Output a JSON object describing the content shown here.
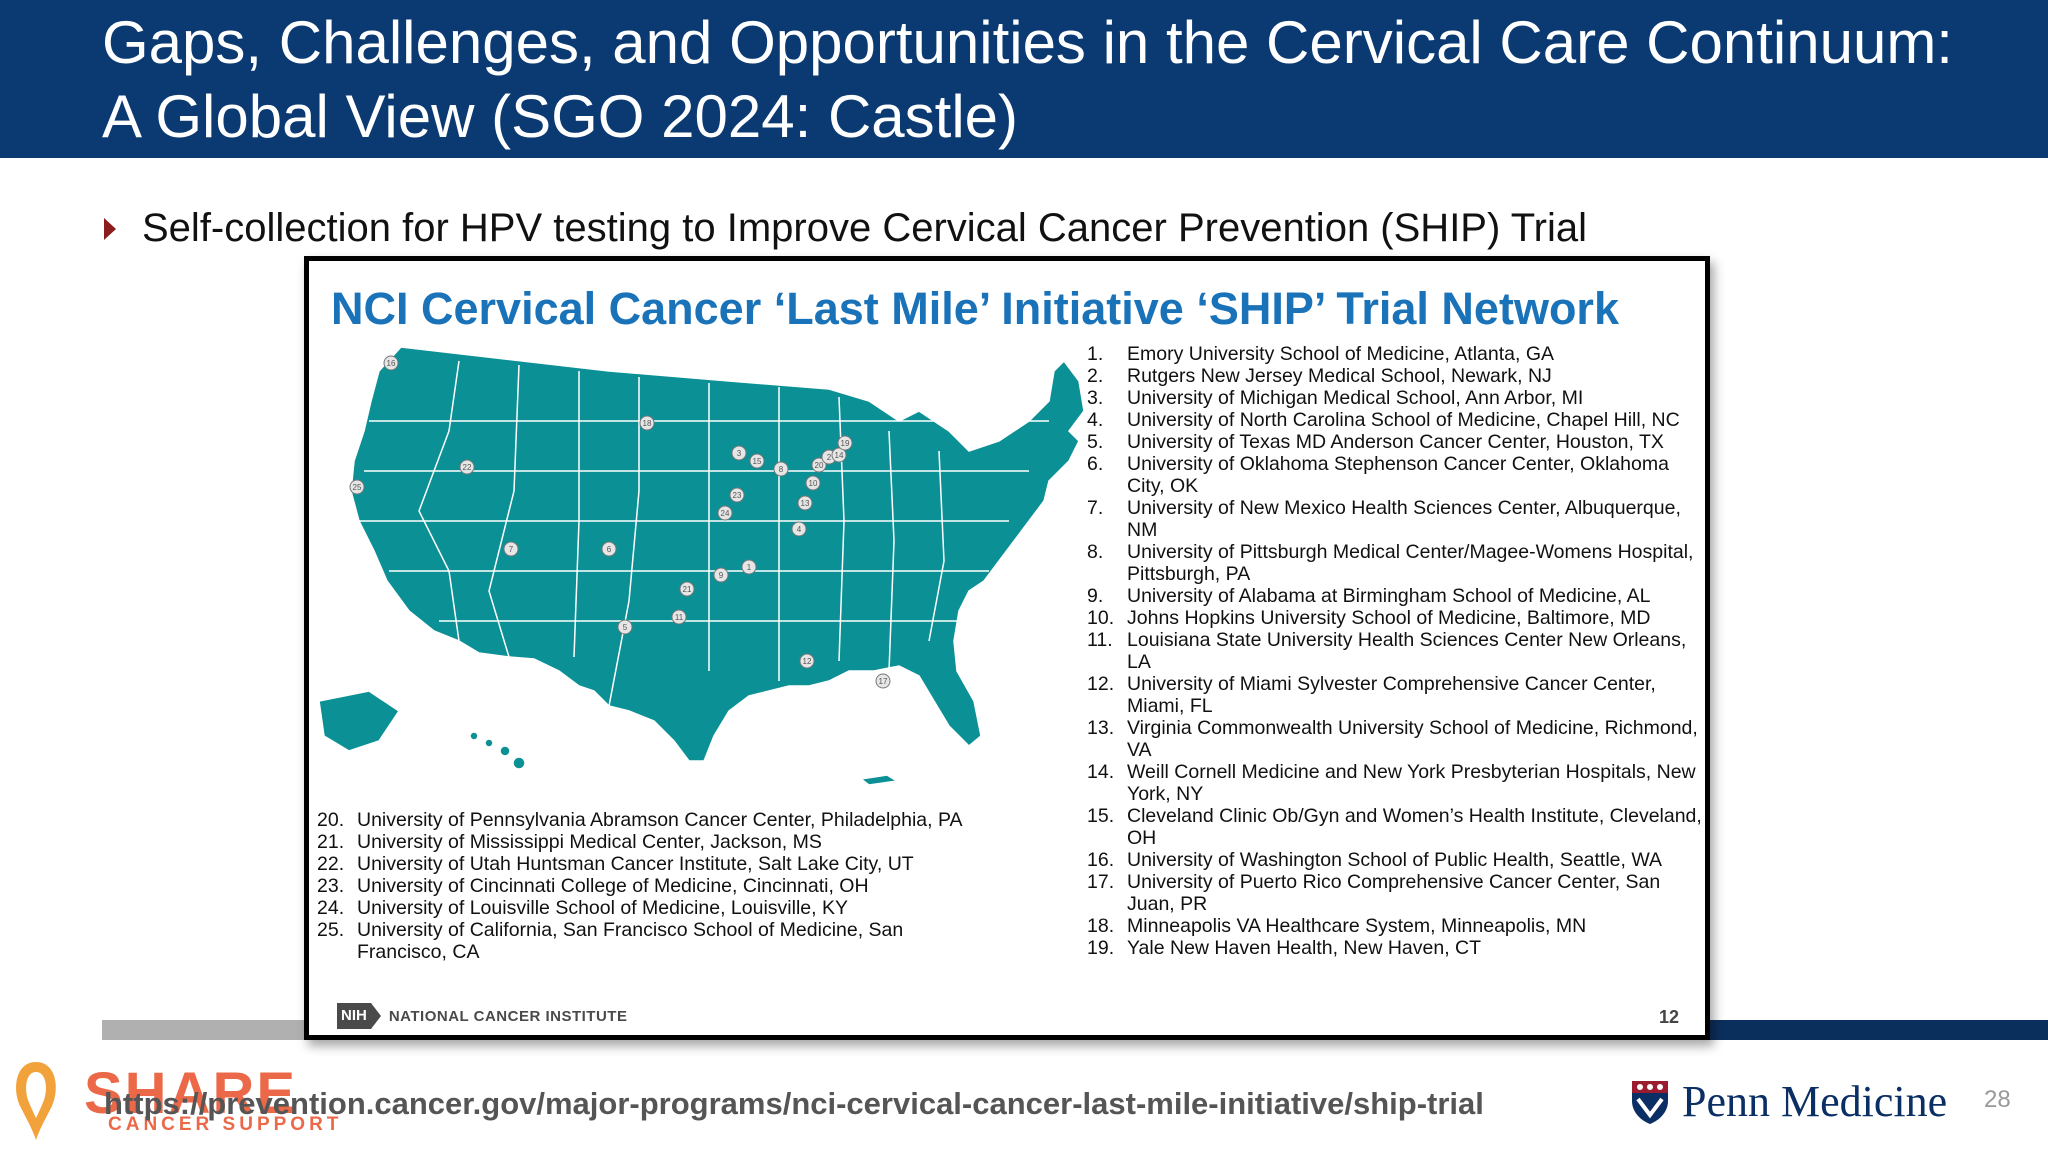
{
  "slide": {
    "title": "Gaps, Challenges, and Opportunities in the Cervical Care Continuum: A Global View (SGO 2024: Castle)",
    "bullet": "Self-collection for HPV testing to Improve Cervical Cancer Prevention (SHIP) Trial",
    "url": "https://prevention.cancer.gov/major-programs/nci-cervical-cancer-last-mile-initiative/ship-trial",
    "page_number": "28"
  },
  "inset": {
    "title": "NCI Cervical Cancer ‘Last Mile’ Initiative ‘SHIP’ Trial Network",
    "page_number": "12",
    "nci_logo_box": "NIH",
    "nci_logo_text": "NATIONAL CANCER INSTITUTE",
    "map_color": "#0b9095",
    "map_markers": [
      "16",
      "22",
      "25",
      "7",
      "6",
      "18",
      "3",
      "15",
      "8",
      "20",
      "2",
      "14",
      "19",
      "10",
      "13",
      "23",
      "24",
      "4",
      "9",
      "1",
      "21",
      "11",
      "5",
      "12",
      "17"
    ],
    "sites_right": [
      {
        "num": "1.",
        "text": "Emory University School of Medicine, Atlanta, GA"
      },
      {
        "num": "2.",
        "text": "Rutgers New Jersey Medical School, Newark, NJ"
      },
      {
        "num": "3.",
        "text": "University of Michigan Medical School, Ann Arbor, MI"
      },
      {
        "num": "4.",
        "text": "University of North Carolina School of Medicine, Chapel Hill, NC"
      },
      {
        "num": "5.",
        "text": "University of Texas MD Anderson Cancer Center, Houston, TX"
      },
      {
        "num": "6.",
        "text": "University of Oklahoma Stephenson Cancer Center, Oklahoma City, OK"
      },
      {
        "num": "7.",
        "text": "University of New Mexico Health Sciences Center, Albuquerque, NM"
      },
      {
        "num": "8.",
        "text": "University of Pittsburgh Medical Center/Magee-Womens Hospital, Pittsburgh, PA"
      },
      {
        "num": "9.",
        "text": "University of Alabama at Birmingham School of Medicine, AL"
      },
      {
        "num": "10.",
        "text": "Johns Hopkins University School of Medicine, Baltimore, MD"
      },
      {
        "num": "11.",
        "text": "Louisiana State University Health Sciences Center New Orleans, LA"
      },
      {
        "num": "12.",
        "text": "University of Miami Sylvester Comprehensive Cancer Center, Miami, FL"
      },
      {
        "num": "13.",
        "text": "Virginia Commonwealth University School of Medicine, Richmond, VA"
      },
      {
        "num": "14.",
        "text": "Weill Cornell Medicine and New York Presbyterian Hospitals, New York, NY"
      },
      {
        "num": "15.",
        "text": "Cleveland Clinic Ob/Gyn and Women’s Health Institute, Cleveland, OH"
      },
      {
        "num": "16.",
        "text": "University of Washington School of Public Health, Seattle, WA"
      },
      {
        "num": "17.",
        "text": "University of Puerto Rico Comprehensive Cancer Center, San Juan, PR"
      },
      {
        "num": "18.",
        "text": "Minneapolis VA Healthcare System, Minneapolis, MN"
      },
      {
        "num": "19.",
        "text": "Yale New Haven Health, New Haven, CT"
      }
    ],
    "sites_left": [
      {
        "num": "20.",
        "text": "University of Pennsylvania Abramson Cancer Center, Philadelphia, PA"
      },
      {
        "num": "21.",
        "text": "University of Mississippi Medical Center, Jackson, MS"
      },
      {
        "num": "22.",
        "text": "University of Utah Huntsman Cancer Institute, Salt Lake City, UT"
      },
      {
        "num": "23.",
        "text": "University of Cincinnati College of Medicine, Cincinnati, OH"
      },
      {
        "num": "24.",
        "text": "University of Louisville School of Medicine, Louisville, KY"
      },
      {
        "num": "25.",
        "text": "University of California, San Francisco School of Medicine, San Francisco, CA"
      }
    ]
  },
  "logos": {
    "share_word": "SHARE",
    "share_sub": "CANCER SUPPORT",
    "penn": "Penn Medicine"
  },
  "colors": {
    "title_bar": "#0b3a73",
    "bullet_arrow": "#8b1d1d",
    "inset_title": "#1a73b8",
    "map": "#0b9095",
    "share": "#e8502a",
    "penn": "#0b2f64"
  }
}
